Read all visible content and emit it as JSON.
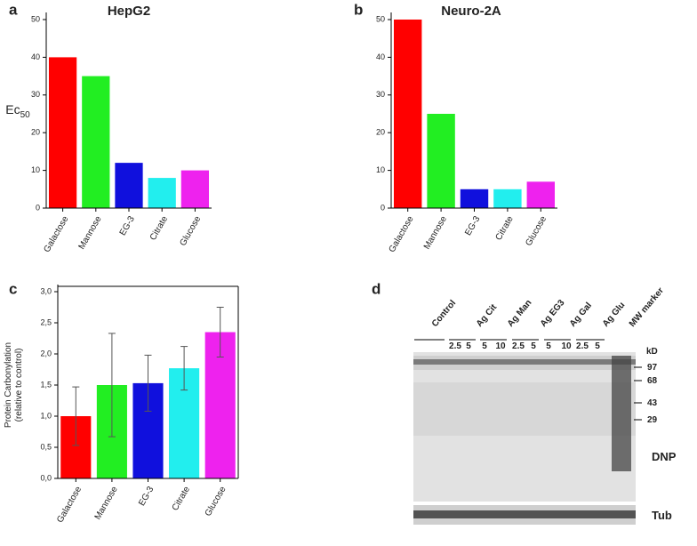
{
  "chart_data": [
    {
      "type": "bar",
      "panel": "a",
      "title": "HepG2",
      "ylabel": "Ec",
      "ylabel_sub": "50",
      "categories": [
        "Galactose",
        "Mannose",
        "EG-3",
        "Citrate",
        "Glucose"
      ],
      "values": [
        40,
        35,
        12,
        8,
        10
      ],
      "colors": [
        "#ff0000",
        "#22ee22",
        "#1010dd",
        "#22eeee",
        "#ee22ee"
      ],
      "ylim": [
        0,
        50
      ],
      "yticks": [
        0,
        10,
        20,
        30,
        40,
        50
      ]
    },
    {
      "type": "bar",
      "panel": "b",
      "title": "Neuro-2A",
      "categories": [
        "Galactose",
        "Mannose",
        "EG-3",
        "Citrate",
        "Glucose"
      ],
      "values": [
        50,
        25,
        5,
        5,
        7
      ],
      "colors": [
        "#ff0000",
        "#22ee22",
        "#1010dd",
        "#22eeee",
        "#ee22ee"
      ],
      "ylim": [
        0,
        50
      ],
      "yticks": [
        0,
        10,
        20,
        30,
        40,
        50
      ]
    },
    {
      "type": "bar",
      "panel": "c",
      "ylabel": "Protein Carbonylation",
      "ylabel2": "(relative to control)",
      "categories": [
        "Galactose",
        "Mannose",
        "EG-3",
        "Citrate",
        "Glucose"
      ],
      "values": [
        1.0,
        1.5,
        1.53,
        1.77,
        2.35
      ],
      "errors": [
        0.47,
        0.83,
        0.45,
        0.35,
        0.4
      ],
      "colors": [
        "#ff0000",
        "#22ee22",
        "#1010dd",
        "#22eeee",
        "#ee22ee"
      ],
      "ylim": [
        0,
        3.0
      ],
      "yticks": [
        {
          "value": 0,
          "label": "0,0"
        },
        {
          "value": 0.5,
          "label": "0,5"
        },
        {
          "value": 1.0,
          "label": "1,0"
        },
        {
          "value": 1.5,
          "label": "1,5"
        },
        {
          "value": 2.0,
          "label": "2,0"
        },
        {
          "value": 2.5,
          "label": "2,5"
        },
        {
          "value": 3.0,
          "label": "3,0"
        }
      ]
    }
  ],
  "blot": {
    "panel": "d",
    "lanes": [
      "Control",
      "Ag Cit",
      "Ag Man",
      "Ag EG3",
      "Ag Gal",
      "Ag Glu",
      "MW marker"
    ],
    "doses": [
      "2.5",
      "5",
      "5",
      "10",
      "2.5",
      "5",
      "5",
      "10",
      "2.5",
      "5"
    ],
    "unit": "kD",
    "markers": [
      "97",
      "68",
      "43",
      "29"
    ],
    "stain": "DNP",
    "loading": "Tub"
  }
}
